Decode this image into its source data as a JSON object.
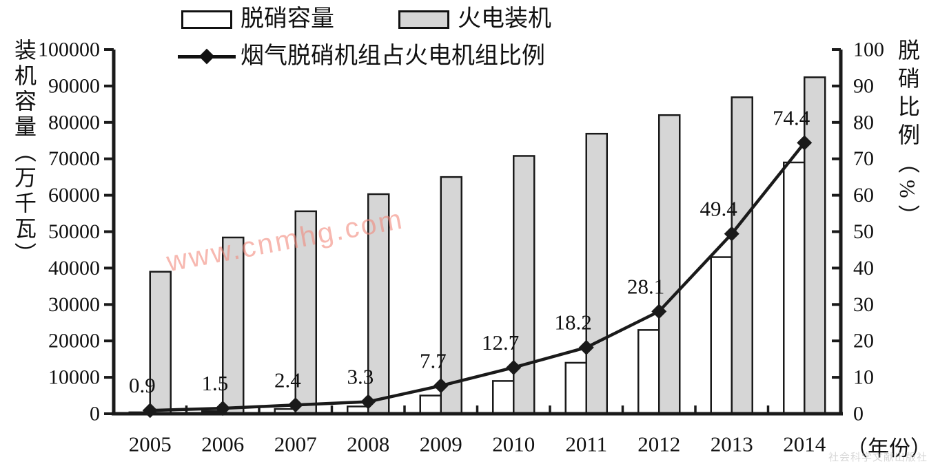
{
  "legend": {
    "items": [
      {
        "label": "脱硝容量",
        "swatch": "white-bar"
      },
      {
        "label": "火电装机",
        "swatch": "gray-bar"
      },
      {
        "label": "烟气脱硝机组占火电机组比例",
        "swatch": "line-diamond"
      }
    ]
  },
  "chart_data": {
    "type": "bar",
    "subtype": "grouped-bars-with-line",
    "title": "",
    "categories": [
      "2005",
      "2006",
      "2007",
      "2008",
      "2009",
      "2010",
      "2011",
      "2012",
      "2013",
      "2014"
    ],
    "series": [
      {
        "name": "脱硝容量",
        "type": "bar",
        "unit": "万千瓦",
        "color": "#ffffff",
        "values": [
          400,
          700,
          1300,
          2000,
          5000,
          9000,
          14000,
          23000,
          43000,
          69000
        ]
      },
      {
        "name": "火电装机",
        "type": "bar",
        "unit": "万千瓦",
        "color": "#d6d6d6",
        "values": [
          39000,
          48400,
          55600,
          60300,
          65000,
          70800,
          76900,
          82000,
          86900,
          92400
        ]
      },
      {
        "name": "烟气脱硝机组占火电机组比例",
        "type": "line",
        "axis": "right",
        "unit": "%",
        "color": "#1a1a1a",
        "values": [
          0.9,
          1.5,
          2.4,
          3.3,
          7.7,
          12.7,
          18.2,
          28.1,
          49.4,
          74.4
        ],
        "point_labels": [
          "0.9",
          "1.5",
          "2.4",
          "3.3",
          "7.7",
          "12.7",
          "18.2",
          "28.1",
          "49.4",
          "74.4"
        ]
      }
    ],
    "left_axis": {
      "title": "装机容量（万千瓦）",
      "min": 0,
      "max": 100000,
      "step": 10000,
      "tick_labels": [
        "0",
        "10000",
        "20000",
        "30000",
        "40000",
        "50000",
        "60000",
        "70000",
        "80000",
        "90000",
        "100000"
      ]
    },
    "right_axis": {
      "title": "脱硝比例（%）",
      "min": 0,
      "max": 100,
      "step": 10,
      "tick_labels": [
        "0",
        "10",
        "20",
        "30",
        "40",
        "50",
        "60",
        "70",
        "80",
        "90",
        "100"
      ]
    },
    "x_axis": {
      "unit_label": "（年份）"
    },
    "legend_position": "top",
    "grid": false
  },
  "watermarks": {
    "center": "www.cnmhg.com",
    "corner": "社会科学文献出版社"
  },
  "colors": {
    "bar_gray": "#d6d6d6",
    "bar_white": "#ffffff",
    "axis_ink": "#1a1a1a",
    "watermark_pink": "#f28a7d"
  }
}
